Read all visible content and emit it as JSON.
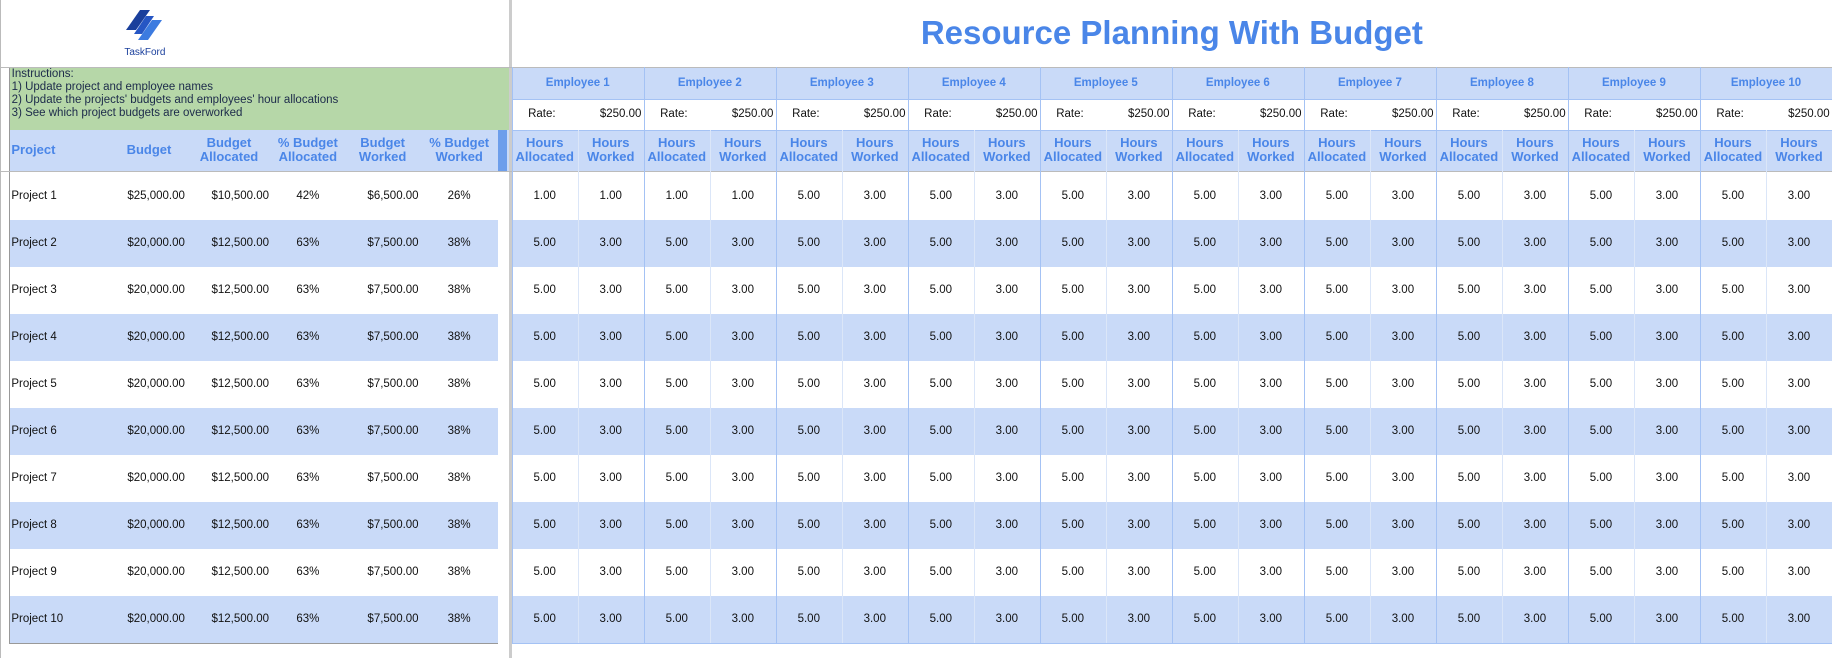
{
  "logo": "TaskFord",
  "title": "Resource Planning With Budget",
  "instructions": [
    "Instructions:",
    "1) Update project and employee names",
    "2) Update the projects' budgets and employees' hour allocations",
    "3) See which project budgets are overworked"
  ],
  "headers": [
    "Project",
    "Budget",
    "Budget Allocated",
    "% Budget Allocated",
    "Budget Worked",
    "% Budget Worked"
  ],
  "employees": [
    {
      "name": "Employee 1",
      "rate_label": "Rate:",
      "rate": "$250.00",
      "hours_allocated": "Hours Allocated",
      "hours_worked": "Hours Worked"
    },
    {
      "name": "Employee 2",
      "rate_label": "Rate:",
      "rate": "$250.00",
      "hours_allocated": "Hours Allocated",
      "hours_worked": "Hours Worked"
    },
    {
      "name": "Employee 3",
      "rate_label": "Rate:",
      "rate": "$250.00",
      "hours_allocated": "Hours Allocated",
      "hours_worked": "Hours Worked"
    },
    {
      "name": "Employee 4",
      "rate_label": "Rate:",
      "rate": "$250.00",
      "hours_allocated": "Hours Allocated",
      "hours_worked": "Hours Worked"
    },
    {
      "name": "Employee 5",
      "rate_label": "Rate:",
      "rate": "$250.00",
      "hours_allocated": "Hours Allocated",
      "hours_worked": "Hours Worked"
    },
    {
      "name": "Employee 6",
      "rate_label": "Rate:",
      "rate": "$250.00",
      "hours_allocated": "Hours Allocated",
      "hours_worked": "Hours Worked"
    },
    {
      "name": "Employee 7",
      "rate_label": "Rate:",
      "rate": "$250.00",
      "hours_allocated": "Hours Allocated",
      "hours_worked": "Hours Worked"
    },
    {
      "name": "Employee 8",
      "rate_label": "Rate:",
      "rate": "$250.00",
      "hours_allocated": "Hours Allocated",
      "hours_worked": "Hours Worked"
    },
    {
      "name": "Employee 9",
      "rate_label": "Rate:",
      "rate": "$250.00",
      "hours_allocated": "Hours Allocated",
      "hours_worked": "Hours Worked"
    },
    {
      "name": "Employee 10",
      "rate_label": "Rate:",
      "rate": "$250.00",
      "hours_allocated": "Hours Allocated",
      "hours_worked": "Hours Worked"
    }
  ],
  "rows": [
    {
      "project": "Project 1",
      "budget": "$25,000.00",
      "budget_allocated": "$10,500.00",
      "pct_allocated": "42%",
      "budget_worked": "$6,500.00",
      "pct_worked": "26%",
      "hours": [
        "1.00",
        "1.00",
        "1.00",
        "1.00",
        "5.00",
        "3.00",
        "5.00",
        "3.00",
        "5.00",
        "3.00",
        "5.00",
        "3.00",
        "5.00",
        "3.00",
        "5.00",
        "3.00",
        "5.00",
        "3.00",
        "5.00",
        "3.00"
      ]
    },
    {
      "project": "Project 2",
      "budget": "$20,000.00",
      "budget_allocated": "$12,500.00",
      "pct_allocated": "63%",
      "budget_worked": "$7,500.00",
      "pct_worked": "38%",
      "hours": [
        "5.00",
        "3.00",
        "5.00",
        "3.00",
        "5.00",
        "3.00",
        "5.00",
        "3.00",
        "5.00",
        "3.00",
        "5.00",
        "3.00",
        "5.00",
        "3.00",
        "5.00",
        "3.00",
        "5.00",
        "3.00",
        "5.00",
        "3.00"
      ]
    },
    {
      "project": "Project 3",
      "budget": "$20,000.00",
      "budget_allocated": "$12,500.00",
      "pct_allocated": "63%",
      "budget_worked": "$7,500.00",
      "pct_worked": "38%",
      "hours": [
        "5.00",
        "3.00",
        "5.00",
        "3.00",
        "5.00",
        "3.00",
        "5.00",
        "3.00",
        "5.00",
        "3.00",
        "5.00",
        "3.00",
        "5.00",
        "3.00",
        "5.00",
        "3.00",
        "5.00",
        "3.00",
        "5.00",
        "3.00"
      ]
    },
    {
      "project": "Project 4",
      "budget": "$20,000.00",
      "budget_allocated": "$12,500.00",
      "pct_allocated": "63%",
      "budget_worked": "$7,500.00",
      "pct_worked": "38%",
      "hours": [
        "5.00",
        "3.00",
        "5.00",
        "3.00",
        "5.00",
        "3.00",
        "5.00",
        "3.00",
        "5.00",
        "3.00",
        "5.00",
        "3.00",
        "5.00",
        "3.00",
        "5.00",
        "3.00",
        "5.00",
        "3.00",
        "5.00",
        "3.00"
      ]
    },
    {
      "project": "Project 5",
      "budget": "$20,000.00",
      "budget_allocated": "$12,500.00",
      "pct_allocated": "63%",
      "budget_worked": "$7,500.00",
      "pct_worked": "38%",
      "hours": [
        "5.00",
        "3.00",
        "5.00",
        "3.00",
        "5.00",
        "3.00",
        "5.00",
        "3.00",
        "5.00",
        "3.00",
        "5.00",
        "3.00",
        "5.00",
        "3.00",
        "5.00",
        "3.00",
        "5.00",
        "3.00",
        "5.00",
        "3.00"
      ]
    },
    {
      "project": "Project 6",
      "budget": "$20,000.00",
      "budget_allocated": "$12,500.00",
      "pct_allocated": "63%",
      "budget_worked": "$7,500.00",
      "pct_worked": "38%",
      "hours": [
        "5.00",
        "3.00",
        "5.00",
        "3.00",
        "5.00",
        "3.00",
        "5.00",
        "3.00",
        "5.00",
        "3.00",
        "5.00",
        "3.00",
        "5.00",
        "3.00",
        "5.00",
        "3.00",
        "5.00",
        "3.00",
        "5.00",
        "3.00"
      ]
    },
    {
      "project": "Project 7",
      "budget": "$20,000.00",
      "budget_allocated": "$12,500.00",
      "pct_allocated": "63%",
      "budget_worked": "$7,500.00",
      "pct_worked": "38%",
      "hours": [
        "5.00",
        "3.00",
        "5.00",
        "3.00",
        "5.00",
        "3.00",
        "5.00",
        "3.00",
        "5.00",
        "3.00",
        "5.00",
        "3.00",
        "5.00",
        "3.00",
        "5.00",
        "3.00",
        "5.00",
        "3.00",
        "5.00",
        "3.00"
      ]
    },
    {
      "project": "Project 8",
      "budget": "$20,000.00",
      "budget_allocated": "$12,500.00",
      "pct_allocated": "63%",
      "budget_worked": "$7,500.00",
      "pct_worked": "38%",
      "hours": [
        "5.00",
        "3.00",
        "5.00",
        "3.00",
        "5.00",
        "3.00",
        "5.00",
        "3.00",
        "5.00",
        "3.00",
        "5.00",
        "3.00",
        "5.00",
        "3.00",
        "5.00",
        "3.00",
        "5.00",
        "3.00",
        "5.00",
        "3.00"
      ]
    },
    {
      "project": "Project 9",
      "budget": "$20,000.00",
      "budget_allocated": "$12,500.00",
      "pct_allocated": "63%",
      "budget_worked": "$7,500.00",
      "pct_worked": "38%",
      "hours": [
        "5.00",
        "3.00",
        "5.00",
        "3.00",
        "5.00",
        "3.00",
        "5.00",
        "3.00",
        "5.00",
        "3.00",
        "5.00",
        "3.00",
        "5.00",
        "3.00",
        "5.00",
        "3.00",
        "5.00",
        "3.00",
        "5.00",
        "3.00"
      ]
    },
    {
      "project": "Project 10",
      "budget": "$20,000.00",
      "budget_allocated": "$12,500.00",
      "pct_allocated": "63%",
      "budget_worked": "$7,500.00",
      "pct_worked": "38%",
      "hours": [
        "5.00",
        "3.00",
        "5.00",
        "3.00",
        "5.00",
        "3.00",
        "5.00",
        "3.00",
        "5.00",
        "3.00",
        "5.00",
        "3.00",
        "5.00",
        "3.00",
        "5.00",
        "3.00",
        "5.00",
        "3.00",
        "5.00",
        "3.00"
      ]
    }
  ]
}
